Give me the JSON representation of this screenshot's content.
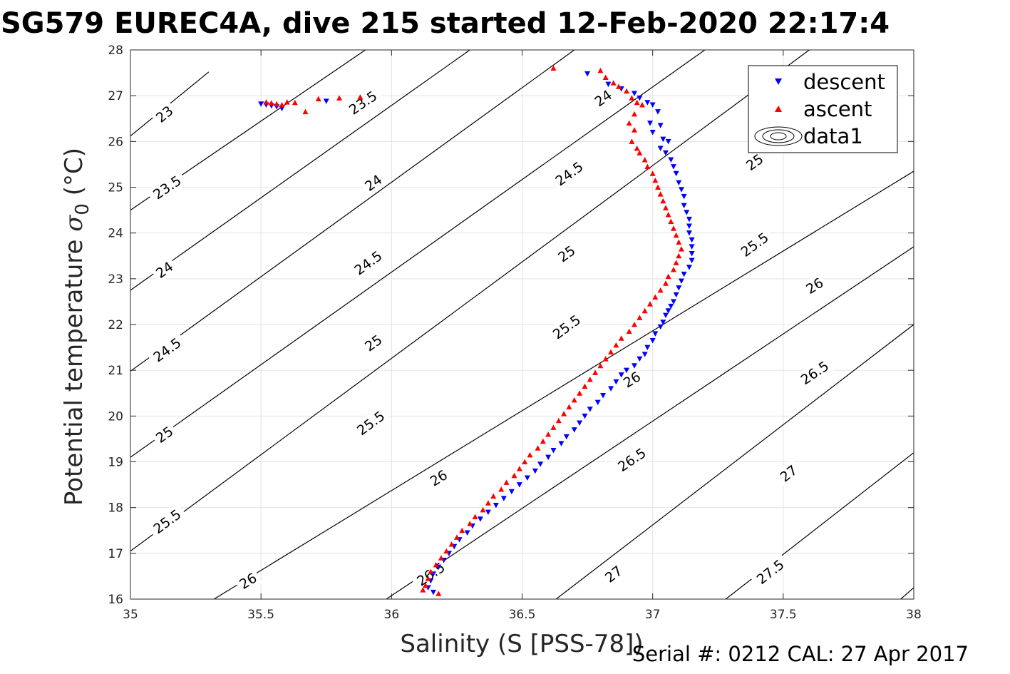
{
  "figure": {
    "title": "SG579 EUREC4A, dive 215 started 12-Feb-2020 22:17:4",
    "footer": "Serial #: 0212  CAL: 27 Apr 2017"
  },
  "chart_data": {
    "type": "scatter",
    "xlabel": "Salinity (S [PSS-78])",
    "ylabel_main": "Potential temperature ",
    "ylabel_sigma": "σ",
    "ylabel_sub": "0",
    "ylabel_unit": " (°C)",
    "xlim": [
      35,
      38
    ],
    "ylim": [
      16,
      28
    ],
    "x_ticks": [
      35,
      35.5,
      36,
      36.5,
      37,
      37.5,
      38
    ],
    "x_tick_labels": [
      "35",
      "35.5",
      "36",
      "36.5",
      "37",
      "37.5",
      "38"
    ],
    "y_ticks": [
      16,
      17,
      18,
      19,
      20,
      21,
      22,
      23,
      24,
      25,
      26,
      27,
      28
    ],
    "y_tick_labels": [
      "16",
      "17",
      "18",
      "19",
      "20",
      "21",
      "22",
      "23",
      "24",
      "25",
      "26",
      "27",
      "28"
    ],
    "grid": true,
    "legend_position": "top-right",
    "legend": [
      "descent",
      "ascent",
      "data1"
    ],
    "colors": {
      "descent": "#0000ff",
      "ascent": "#ff0000",
      "contour": "#000000",
      "grid": "#e3e3e3"
    },
    "contour_levels": [
      23,
      23.5,
      24,
      24.5,
      25,
      25.5,
      26,
      26.5,
      27,
      27.5
    ],
    "contours": [
      {
        "level": 23,
        "label": "23",
        "line": [
          [
            35.0,
            26.12
          ],
          [
            35.3,
            27.52
          ]
        ],
        "label_positions": [
          [
            35.13,
            26.6
          ]
        ]
      },
      {
        "level": 23.5,
        "label": "23.5",
        "line": [
          [
            35.0,
            24.5
          ],
          [
            35.9,
            28.0
          ]
        ],
        "label_positions": [
          [
            35.14,
            25.0
          ],
          [
            35.89,
            26.85
          ]
        ]
      },
      {
        "level": 24,
        "label": "24",
        "line": [
          [
            35.0,
            22.75
          ],
          [
            36.3,
            28.0
          ]
        ],
        "label_positions": [
          [
            35.13,
            23.2
          ],
          [
            35.93,
            25.1
          ],
          [
            36.81,
            26.95
          ]
        ]
      },
      {
        "level": 24.5,
        "label": "24.5",
        "line": [
          [
            35.0,
            20.98
          ],
          [
            36.7,
            28.0
          ]
        ],
        "label_positions": [
          [
            35.14,
            21.45
          ],
          [
            35.91,
            23.35
          ],
          [
            36.68,
            25.3
          ]
        ]
      },
      {
        "level": 25,
        "label": "25",
        "line": [
          [
            35.0,
            19.1
          ],
          [
            37.2,
            28.0
          ]
        ],
        "label_positions": [
          [
            35.13,
            19.6
          ],
          [
            35.93,
            21.6
          ],
          [
            36.67,
            23.55
          ],
          [
            37.39,
            25.55
          ]
        ]
      },
      {
        "level": 25.5,
        "label": "25.5",
        "line": [
          [
            35.0,
            17.05
          ],
          [
            37.6,
            28.0
          ]
        ],
        "label_positions": [
          [
            35.14,
            17.7
          ],
          [
            35.92,
            19.85
          ],
          [
            36.67,
            21.95
          ],
          [
            37.39,
            23.75
          ]
        ]
      },
      {
        "level": 26,
        "label": "26",
        "line": [
          [
            35.32,
            16.0
          ],
          [
            38.0,
            25.35
          ]
        ],
        "label_positions": [
          [
            35.45,
            16.4
          ],
          [
            36.18,
            18.65
          ],
          [
            36.92,
            20.8
          ],
          [
            37.62,
            22.85
          ]
        ]
      },
      {
        "level": 26.5,
        "label": "26.5",
        "line": [
          [
            35.98,
            16.0
          ],
          [
            38.0,
            23.7
          ]
        ],
        "label_positions": [
          [
            36.15,
            16.55
          ],
          [
            36.92,
            19.05
          ],
          [
            37.62,
            20.95
          ]
        ]
      },
      {
        "level": 27,
        "label": "27",
        "line": [
          [
            36.63,
            16.0
          ],
          [
            38.0,
            22.0
          ]
        ],
        "label_positions": [
          [
            36.85,
            16.55
          ],
          [
            37.52,
            18.75
          ]
        ]
      },
      {
        "level": 27.5,
        "label": "27.5",
        "line": [
          [
            37.28,
            16.0
          ],
          [
            38.0,
            19.2
          ]
        ],
        "label_positions": [
          [
            37.45,
            16.6
          ]
        ]
      },
      {
        "level": 28,
        "label": "",
        "line": [
          [
            37.95,
            16.0
          ],
          [
            38.0,
            16.25
          ]
        ],
        "label_positions": []
      }
    ],
    "series": [
      {
        "name": "descent",
        "marker": "triangle-down",
        "points": [
          [
            35.5,
            26.82
          ],
          [
            35.52,
            26.8
          ],
          [
            35.54,
            26.78
          ],
          [
            35.56,
            26.76
          ],
          [
            35.58,
            26.72
          ],
          [
            35.75,
            26.88
          ],
          [
            36.75,
            27.48
          ],
          [
            36.83,
            27.25
          ],
          [
            36.88,
            27.15
          ],
          [
            36.93,
            27.05
          ],
          [
            36.95,
            26.95
          ],
          [
            36.98,
            26.85
          ],
          [
            37.0,
            26.8
          ],
          [
            37.02,
            26.65
          ],
          [
            36.99,
            26.4
          ],
          [
            37.03,
            26.35
          ],
          [
            37.0,
            26.2
          ],
          [
            37.04,
            26.05
          ],
          [
            37.06,
            26.0
          ],
          [
            37.03,
            25.85
          ],
          [
            37.05,
            25.75
          ],
          [
            37.07,
            25.6
          ],
          [
            37.08,
            25.45
          ],
          [
            37.09,
            25.3
          ],
          [
            37.1,
            25.1
          ],
          [
            37.11,
            24.95
          ],
          [
            37.12,
            24.8
          ],
          [
            37.12,
            24.6
          ],
          [
            37.13,
            24.45
          ],
          [
            37.14,
            24.3
          ],
          [
            37.14,
            24.15
          ],
          [
            37.14,
            24.0
          ],
          [
            37.15,
            23.85
          ],
          [
            37.15,
            23.7
          ],
          [
            37.15,
            23.55
          ],
          [
            37.15,
            23.4
          ],
          [
            37.14,
            23.25
          ],
          [
            37.12,
            23.1
          ],
          [
            37.11,
            22.95
          ],
          [
            37.1,
            22.8
          ],
          [
            37.09,
            22.65
          ],
          [
            37.08,
            22.5
          ],
          [
            37.07,
            22.4
          ],
          [
            37.06,
            22.3
          ],
          [
            37.05,
            22.2
          ],
          [
            37.04,
            22.05
          ],
          [
            37.03,
            21.95
          ],
          [
            37.01,
            21.8
          ],
          [
            37.0,
            21.65
          ],
          [
            36.98,
            21.5
          ],
          [
            36.97,
            21.35
          ],
          [
            36.95,
            21.25
          ],
          [
            36.93,
            21.1
          ],
          [
            36.9,
            21.0
          ],
          [
            36.88,
            20.9
          ],
          [
            36.86,
            20.75
          ],
          [
            36.84,
            20.6
          ],
          [
            36.81,
            20.45
          ],
          [
            36.79,
            20.3
          ],
          [
            36.76,
            20.15
          ],
          [
            36.74,
            20.0
          ],
          [
            36.72,
            19.85
          ],
          [
            36.7,
            19.7
          ],
          [
            36.67,
            19.55
          ],
          [
            36.65,
            19.4
          ],
          [
            36.62,
            19.25
          ],
          [
            36.6,
            19.1
          ],
          [
            36.57,
            18.95
          ],
          [
            36.55,
            18.8
          ],
          [
            36.52,
            18.65
          ],
          [
            36.49,
            18.5
          ],
          [
            36.46,
            18.35
          ],
          [
            36.43,
            18.2
          ],
          [
            36.4,
            18.05
          ],
          [
            36.37,
            17.9
          ],
          [
            36.34,
            17.75
          ],
          [
            36.31,
            17.6
          ],
          [
            36.29,
            17.45
          ],
          [
            36.26,
            17.3
          ],
          [
            36.24,
            17.15
          ],
          [
            36.22,
            17.0
          ],
          [
            36.2,
            16.85
          ],
          [
            36.18,
            16.7
          ],
          [
            36.16,
            16.55
          ],
          [
            36.15,
            16.4
          ],
          [
            36.14,
            16.25
          ],
          [
            36.16,
            16.15
          ]
        ]
      },
      {
        "name": "ascent",
        "marker": "triangle-up",
        "points": [
          [
            35.52,
            26.86
          ],
          [
            35.54,
            26.84
          ],
          [
            35.56,
            26.82
          ],
          [
            35.58,
            26.8
          ],
          [
            35.6,
            26.86
          ],
          [
            35.63,
            26.85
          ],
          [
            35.67,
            26.65
          ],
          [
            35.72,
            26.93
          ],
          [
            35.8,
            26.95
          ],
          [
            35.88,
            26.97
          ],
          [
            36.62,
            27.6
          ],
          [
            36.8,
            27.55
          ],
          [
            36.82,
            27.4
          ],
          [
            36.85,
            27.28
          ],
          [
            36.87,
            27.2
          ],
          [
            36.9,
            27.1
          ],
          [
            36.92,
            26.95
          ],
          [
            36.94,
            26.85
          ],
          [
            36.96,
            26.8
          ],
          [
            36.93,
            26.6
          ],
          [
            36.91,
            26.4
          ],
          [
            36.93,
            26.25
          ],
          [
            36.92,
            26.0
          ],
          [
            36.94,
            25.85
          ],
          [
            36.95,
            25.75
          ],
          [
            36.97,
            25.6
          ],
          [
            36.98,
            25.45
          ],
          [
            37.0,
            25.3
          ],
          [
            37.01,
            25.15
          ],
          [
            37.02,
            25.0
          ],
          [
            37.03,
            24.85
          ],
          [
            37.04,
            24.7
          ],
          [
            37.05,
            24.55
          ],
          [
            37.06,
            24.4
          ],
          [
            37.07,
            24.25
          ],
          [
            37.08,
            24.1
          ],
          [
            37.09,
            23.95
          ],
          [
            37.1,
            23.8
          ],
          [
            37.11,
            23.65
          ],
          [
            37.1,
            23.5
          ],
          [
            37.09,
            23.35
          ],
          [
            37.08,
            23.2
          ],
          [
            37.06,
            23.05
          ],
          [
            37.05,
            22.9
          ],
          [
            37.03,
            22.75
          ],
          [
            37.01,
            22.6
          ],
          [
            36.99,
            22.45
          ],
          [
            36.97,
            22.3
          ],
          [
            36.95,
            22.15
          ],
          [
            36.93,
            22.0
          ],
          [
            36.91,
            21.85
          ],
          [
            36.88,
            21.7
          ],
          [
            36.86,
            21.55
          ],
          [
            36.84,
            21.4
          ],
          [
            36.82,
            21.25
          ],
          [
            36.8,
            21.1
          ],
          [
            36.78,
            20.95
          ],
          [
            36.76,
            20.8
          ],
          [
            36.74,
            20.65
          ],
          [
            36.72,
            20.5
          ],
          [
            36.7,
            20.35
          ],
          [
            36.68,
            20.2
          ],
          [
            36.66,
            20.05
          ],
          [
            36.64,
            19.9
          ],
          [
            36.62,
            19.75
          ],
          [
            36.6,
            19.6
          ],
          [
            36.58,
            19.45
          ],
          [
            36.56,
            19.3
          ],
          [
            36.53,
            19.15
          ],
          [
            36.51,
            19.0
          ],
          [
            36.49,
            18.85
          ],
          [
            36.47,
            18.7
          ],
          [
            36.44,
            18.55
          ],
          [
            36.42,
            18.4
          ],
          [
            36.39,
            18.25
          ],
          [
            36.37,
            18.1
          ],
          [
            36.35,
            17.95
          ],
          [
            36.32,
            17.8
          ],
          [
            36.3,
            17.65
          ],
          [
            36.27,
            17.5
          ],
          [
            36.25,
            17.35
          ],
          [
            36.23,
            17.2
          ],
          [
            36.21,
            17.05
          ],
          [
            36.19,
            16.9
          ],
          [
            36.17,
            16.75
          ],
          [
            36.15,
            16.6
          ],
          [
            36.14,
            16.45
          ],
          [
            36.13,
            16.3
          ],
          [
            36.12,
            16.2
          ],
          [
            36.18,
            16.12
          ]
        ]
      }
    ]
  }
}
